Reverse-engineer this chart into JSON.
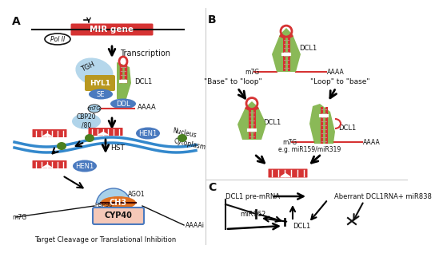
{
  "bg_color": "#ffffff",
  "panel_A_label": "A",
  "panel_B_label": "B",
  "panel_C_label": "C",
  "mir_gene_text": "MIR gene",
  "transcription_text": "Transcription",
  "hyl1_text": "HYL1",
  "se_text": "SE",
  "tgh_text": "TGH",
  "dcl1_text": "DCL1",
  "ddl_text": "DDL",
  "m7g_text1": "m7G",
  "cbp_text": "CBP20\n/80",
  "aaaa_text1": "AAAA",
  "hen1_text1": "HEN1",
  "hen1_text2": "HEN1",
  "hst_text": "HST",
  "ago1_text": "AGO1",
  "hsp90_text": "HSP90",
  "ch3_text": "CH3",
  "cyp40_text": "CYP40",
  "m7g_text2": "m7G",
  "aaaa_text2": "AAAAi",
  "bottom_text": "Target Cleavage or Translational Inhibition",
  "nucleus_text": "Nucleus",
  "cytoplasm_text": "Cytoplasm",
  "polii_text": "Pol II",
  "base_to_loop_text": "\"Base\" to \"loop\"",
  "loop_to_base_text": "\"Loop\" to \"base\"",
  "eg_text": "e.g. miR159/miR319",
  "m7g_B": "m7G",
  "aaaa_B": "AAAA",
  "m7g_B2": "m7G",
  "aaaa_B2": "AAAA",
  "dcl1_B1": "DCL1",
  "dcl1_B2": "DCL1",
  "dcl1_pre_text": "DCL1 pre-mRNA",
  "aberrant_text": "Aberrant DCL1RNA+ miR838",
  "mir162_text": "miR162",
  "dcl1_C_text": "DCL1",
  "red_color": "#d63333",
  "green_color": "#7ab040",
  "dark_green": "#4a8020",
  "blue_color": "#4a7abf",
  "light_blue": "#88b8e0",
  "sky_blue": "#a8d0e8",
  "gold_color": "#b89820",
  "orange_color": "#e07020",
  "pink_color": "#f5c8b8",
  "dark_color": "#111111",
  "gray_color": "#888888",
  "nucleus_blue": "#3388cc",
  "panel_border": "#cccccc"
}
